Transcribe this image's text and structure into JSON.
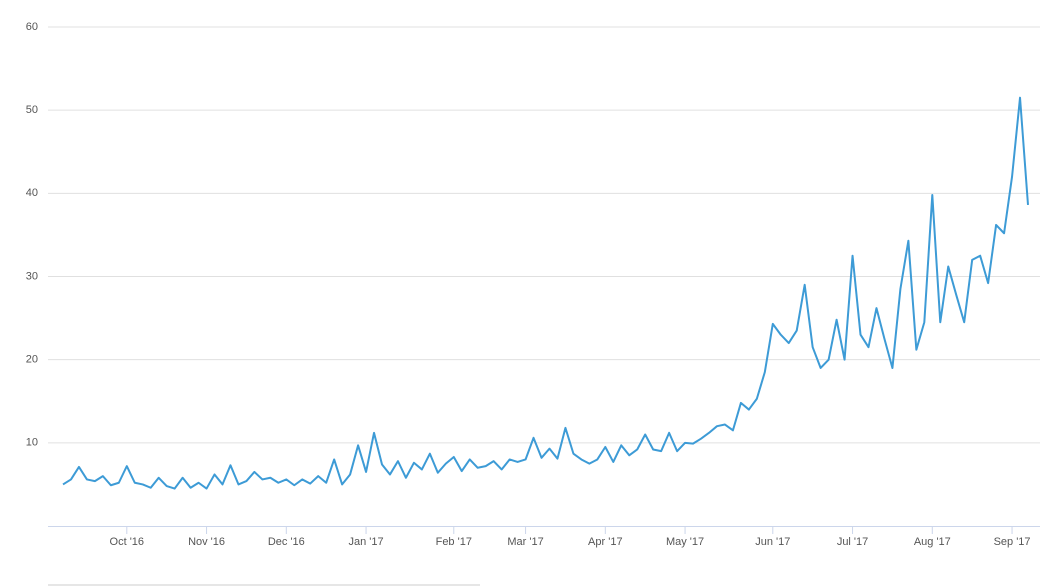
{
  "chart_data": {
    "type": "line",
    "categories": [
      null,
      null,
      null,
      null,
      null,
      null,
      null,
      null,
      "Oct '16",
      null,
      null,
      null,
      null,
      null,
      null,
      null,
      null,
      null,
      "Nov '16",
      null,
      null,
      null,
      null,
      null,
      null,
      null,
      null,
      null,
      "Dec '16",
      null,
      null,
      null,
      null,
      null,
      null,
      null,
      null,
      null,
      "Jan '17",
      null,
      null,
      null,
      null,
      null,
      null,
      null,
      null,
      null,
      null,
      "Feb '17",
      null,
      null,
      null,
      null,
      null,
      null,
      null,
      null,
      "Mar '17",
      null,
      null,
      null,
      null,
      null,
      null,
      null,
      null,
      null,
      "Apr '17",
      null,
      null,
      null,
      null,
      null,
      null,
      null,
      null,
      null,
      "May '17",
      null,
      null,
      null,
      null,
      null,
      null,
      null,
      null,
      null,
      null,
      "Jun '17",
      null,
      null,
      null,
      null,
      null,
      null,
      null,
      null,
      null,
      "Jul '17",
      null,
      null,
      null,
      null,
      null,
      null,
      null,
      null,
      null,
      "Aug '17",
      null,
      null,
      null,
      null,
      null,
      null,
      null,
      null,
      null,
      "Sep '17",
      null,
      null
    ],
    "values": [
      5,
      5.6,
      7.1,
      5.6,
      5.4,
      6,
      4.9,
      5.2,
      7.2,
      5.2,
      5,
      4.6,
      5.8,
      4.8,
      4.5,
      5.8,
      4.6,
      5.2,
      4.5,
      6.2,
      5,
      7.3,
      5,
      5.4,
      6.5,
      5.6,
      5.8,
      5.2,
      5.6,
      4.9,
      5.6,
      5.1,
      6,
      5.2,
      8,
      5,
      6.2,
      9.7,
      6.5,
      11.2,
      7.4,
      6.2,
      7.8,
      5.8,
      7.6,
      6.8,
      8.7,
      6.4,
      7.5,
      8.3,
      6.6,
      8,
      7,
      7.2,
      7.8,
      6.8,
      8,
      7.7,
      8,
      10.6,
      8.2,
      9.3,
      8.1,
      11.8,
      8.7,
      8,
      7.5,
      8,
      9.5,
      7.7,
      9.7,
      8.5,
      9.2,
      11,
      9.2,
      9,
      11.2,
      9,
      10,
      9.9,
      10.5,
      11.2,
      12,
      12.2,
      11.5,
      14.8,
      14,
      15.3,
      18.5,
      24.3,
      23,
      22,
      23.5,
      29,
      21.5,
      19,
      20,
      24.8,
      20,
      32.5,
      23,
      21.5,
      26.2,
      22.5,
      19,
      28.5,
      34.3,
      21.2,
      24.5,
      39.8,
      24.5,
      31.2,
      27.8,
      24.5,
      32,
      32.5,
      29.2,
      36.2,
      35.2,
      42,
      51.5,
      38.6
    ],
    "color": "#3d9bd6",
    "ylim": [
      0,
      60
    ],
    "yticks": [
      10,
      20,
      30,
      40,
      50,
      60
    ],
    "grid": true
  }
}
